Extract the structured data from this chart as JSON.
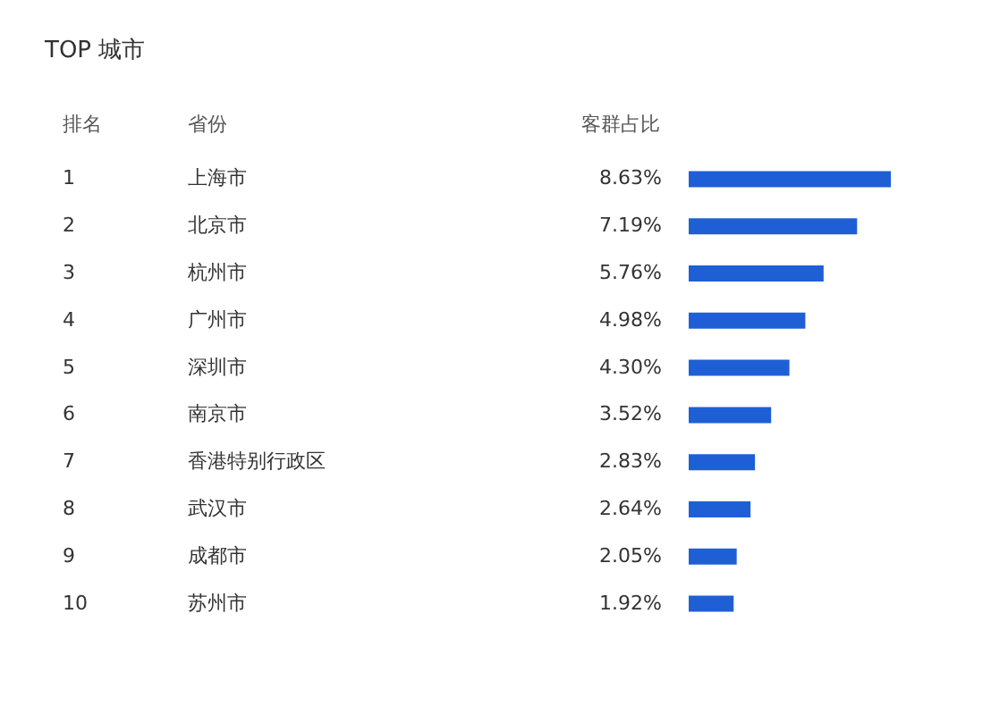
{
  "chart_data": {
    "type": "bar",
    "orientation": "horizontal",
    "title": "TOP 城市",
    "ylabel": "省份",
    "xlabel": "客群占比",
    "annotations": [
      "排名",
      "1",
      "2",
      "3",
      "4",
      "5",
      "6",
      "7",
      "8",
      "9",
      "10"
    ],
    "categories": [
      "上海市",
      "北京市",
      "杭州市",
      "广州市",
      "深圳市",
      "南京市",
      "香港特别行政区",
      "武汉市",
      "成都市",
      "苏州市"
    ],
    "values": [
      8.63,
      7.19,
      5.76,
      4.98,
      4.3,
      3.52,
      2.83,
      2.64,
      2.05,
      1.92
    ],
    "value_labels": [
      "8.63%",
      "7.19%",
      "5.76%",
      "4.98%",
      "4.30%",
      "3.52%",
      "2.83%",
      "2.64%",
      "2.05%",
      "1.92%"
    ],
    "color": "#1f5fd6"
  }
}
